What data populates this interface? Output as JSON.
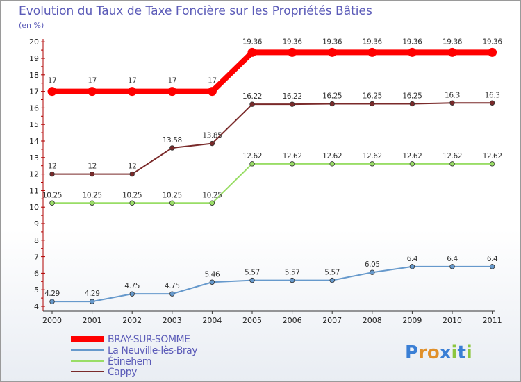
{
  "chart_data": {
    "type": "line",
    "title": "Evolution du Taux de Taxe Foncière sur les Propriétés Bâties",
    "ylabel": "(en %)",
    "xlabel": "",
    "ylim": [
      4,
      20
    ],
    "yticks": [
      "4",
      "5",
      "6",
      "7",
      "8",
      "9",
      "10",
      "11",
      "12",
      "13",
      "14",
      "15",
      "16",
      "17",
      "18",
      "19",
      "20"
    ],
    "categories": [
      "2000",
      "2001",
      "2002",
      "2003",
      "2004",
      "2005",
      "2006",
      "2007",
      "2008",
      "2009",
      "2010",
      "2011"
    ],
    "series": [
      {
        "name": "BRAY-SUR-SOMME",
        "color": "#ff0000",
        "values": [
          17,
          17,
          17,
          17,
          17,
          19.36,
          19.36,
          19.36,
          19.36,
          19.36,
          19.36,
          19.36
        ],
        "labels": [
          "17",
          "17",
          "17",
          "17",
          "17",
          "19.36",
          "19.36",
          "19.36",
          "19.36",
          "19.36",
          "19.36",
          "19.36"
        ]
      },
      {
        "name": "La Neuville-lès-Bray",
        "color": "#6699cc",
        "values": [
          4.29,
          4.29,
          4.75,
          4.75,
          5.46,
          5.57,
          5.57,
          5.57,
          6.05,
          6.4,
          6.4,
          6.4
        ],
        "labels": [
          "4.29",
          "4.29",
          "4.75",
          "4.75",
          "5.46",
          "5.57",
          "5.57",
          "5.57",
          "6.05",
          "6.4",
          "6.4",
          "6.4"
        ]
      },
      {
        "name": "Étinehem",
        "color": "#99dd66",
        "values": [
          10.25,
          10.25,
          10.25,
          10.25,
          10.25,
          12.62,
          12.62,
          12.62,
          12.62,
          12.62,
          12.62,
          12.62
        ],
        "labels": [
          "10.25",
          "10.25",
          "10.25",
          "10.25",
          "10.25",
          "12.62",
          "12.62",
          "12.62",
          "12.62",
          "12.62",
          "12.62",
          "12.62"
        ]
      },
      {
        "name": "Cappy",
        "color": "#7a2a2a",
        "values": [
          12,
          12,
          12,
          13.58,
          13.85,
          16.22,
          16.22,
          16.25,
          16.25,
          16.25,
          16.3,
          16.3
        ],
        "labels": [
          "12",
          "12",
          "12",
          "13.58",
          "13.85",
          "16.22",
          "16.22",
          "16.25",
          "16.25",
          "16.25",
          "16.3",
          "16.3"
        ]
      }
    ],
    "legend_position": "bottom-left",
    "grid": false
  },
  "brand": {
    "text": "Proxiti",
    "letters": [
      "P",
      "r",
      "o",
      "x",
      "i",
      "t",
      "i"
    ],
    "colors": [
      "#3a7fd5",
      "#e0902a",
      "#e0902a",
      "#3a7fd5",
      "#8cc63f",
      "#3a7fd5",
      "#8cc63f"
    ]
  }
}
